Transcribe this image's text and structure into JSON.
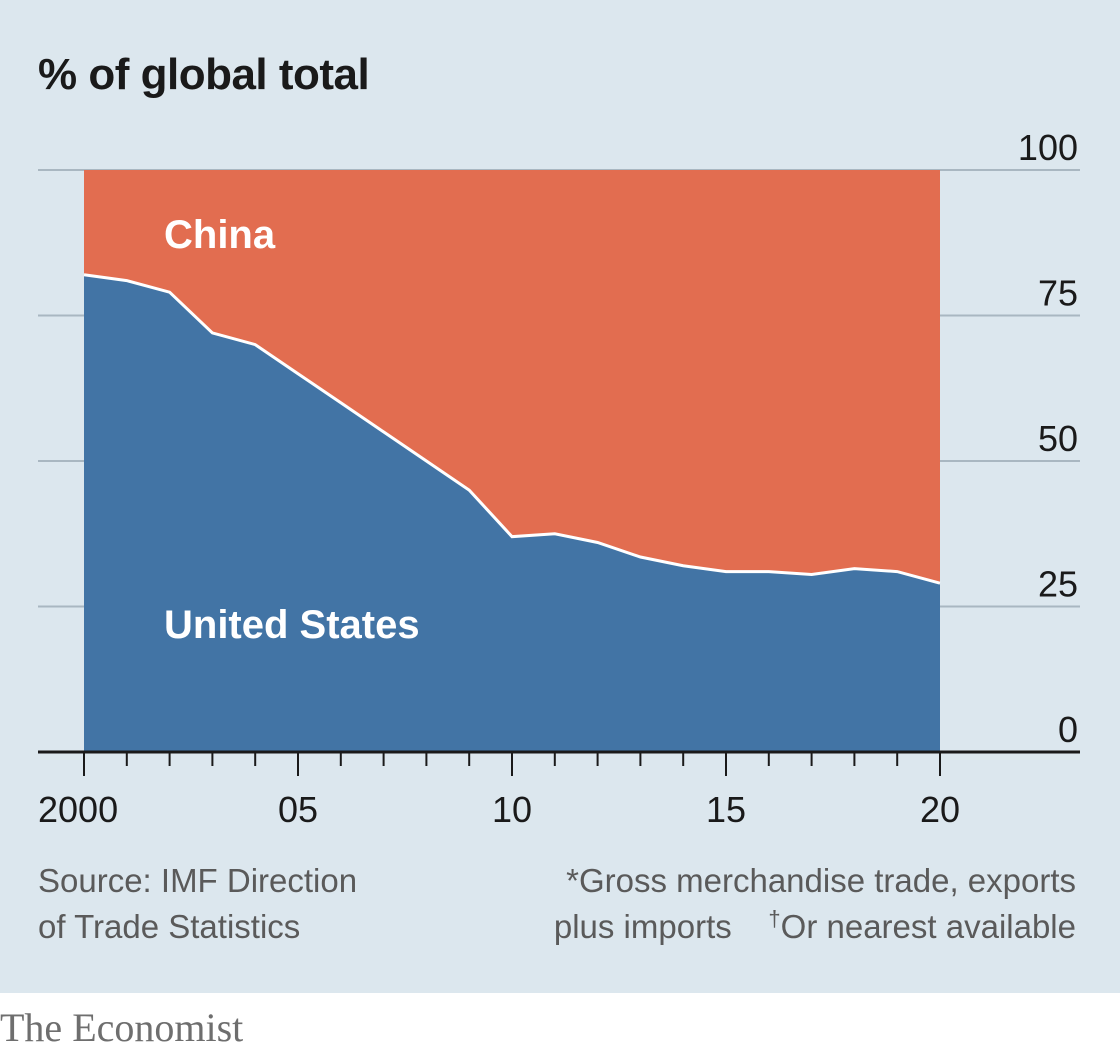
{
  "chart_data": {
    "type": "area",
    "stacked": true,
    "ylabel": "% of global total",
    "ylim": [
      0,
      100
    ],
    "yticks": [
      0,
      25,
      50,
      75,
      100
    ],
    "xlim": [
      2000,
      2020
    ],
    "xticks": [
      2000,
      2005,
      2010,
      2015,
      2020
    ],
    "xtick_labels": [
      "2000",
      "05",
      "10",
      "15",
      "20"
    ],
    "x": [
      2000,
      2001,
      2002,
      2003,
      2004,
      2005,
      2006,
      2007,
      2008,
      2009,
      2010,
      2011,
      2012,
      2013,
      2014,
      2015,
      2016,
      2017,
      2018,
      2019,
      2020
    ],
    "series": [
      {
        "name": "United States",
        "color": "#4274a5",
        "values": [
          82,
          81,
          79,
          72,
          70,
          65,
          60,
          55,
          50,
          45,
          37,
          37.5,
          36,
          33.5,
          32,
          31,
          31,
          30.5,
          31.5,
          31,
          29
        ]
      },
      {
        "name": "China",
        "color": "#e26d50",
        "values": [
          18,
          19,
          21,
          28,
          30,
          35,
          40,
          45,
          50,
          55,
          63,
          62.5,
          64,
          66.5,
          68,
          69,
          69,
          69.5,
          68.5,
          69,
          71
        ]
      }
    ],
    "grid": true,
    "y_axis_side": "right"
  },
  "source": {
    "line1": "Source: IMF Direction",
    "line2": "of Trade Statistics"
  },
  "notes": {
    "line1": "*Gross merchandise trade, exports",
    "line2a": "plus imports",
    "dagger": "†",
    "line2b": "Or nearest available"
  },
  "brand": "The Economist"
}
